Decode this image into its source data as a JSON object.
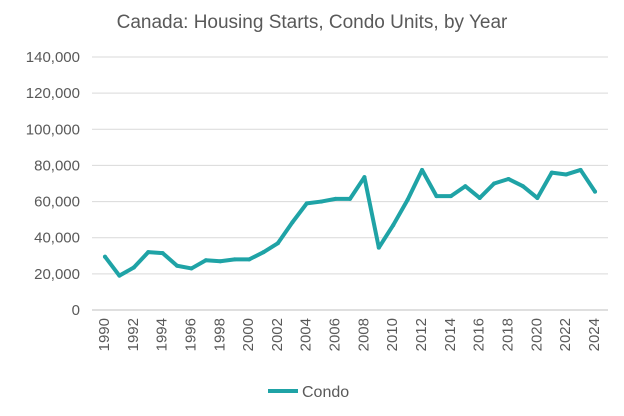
{
  "chart_data": {
    "type": "line",
    "title": "Canada: Housing Starts, Condo Units, by Year",
    "xlabel": "",
    "ylabel": "",
    "x": [
      1990,
      1991,
      1992,
      1993,
      1994,
      1995,
      1996,
      1997,
      1998,
      1999,
      2000,
      2001,
      2002,
      2003,
      2004,
      2005,
      2006,
      2007,
      2008,
      2009,
      2010,
      2011,
      2012,
      2013,
      2014,
      2015,
      2016,
      2017,
      2018,
      2019,
      2020,
      2021,
      2022,
      2023,
      2024
    ],
    "x_tick_labels": [
      "1990",
      "1992",
      "1994",
      "1996",
      "1998",
      "2000",
      "2002",
      "2004",
      "2006",
      "2008",
      "2010",
      "2012",
      "2014",
      "2016",
      "2018",
      "2020",
      "2022",
      "2024"
    ],
    "ylim": [
      0,
      140000
    ],
    "y_tick_labels": [
      "0",
      "20,000",
      "40,000",
      "60,000",
      "80,000",
      "100,000",
      "120,000",
      "140,000"
    ],
    "y_tick_values": [
      0,
      20000,
      40000,
      60000,
      80000,
      100000,
      120000,
      140000
    ],
    "grid": true,
    "legend_position": "bottom",
    "series": [
      {
        "name": "Condo",
        "color": "#1fa3a6",
        "values": [
          29500,
          19000,
          23500,
          32000,
          31500,
          24500,
          23000,
          27500,
          27000,
          28000,
          28000,
          32000,
          37000,
          48500,
          59000,
          60000,
          61500,
          61500,
          73500,
          34500,
          47000,
          61000,
          77500,
          63000,
          63000,
          68500,
          62000,
          70000,
          72500,
          68500,
          62000,
          76000,
          75000,
          77500,
          65500
        ]
      }
    ]
  }
}
